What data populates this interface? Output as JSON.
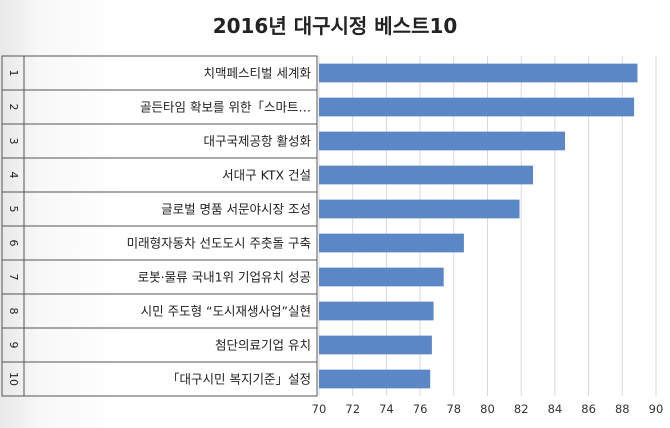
{
  "chart_data": {
    "type": "bar",
    "orientation": "horizontal",
    "title": "2016년 대구시정 베스트10",
    "ranks": [
      "1",
      "2",
      "3",
      "4",
      "5",
      "6",
      "7",
      "8",
      "9",
      "10"
    ],
    "categories": [
      "치맥페스티벌 세계화",
      "골든타임 확보를 위한「스마트…",
      "대구국제공항 활성화",
      "서대구 KTX 건설",
      "글로벌 명품 서문야시장 조성",
      "미래형자동차 선도도시 주춧돌 구축",
      "로봇·물류 국내1위 기업유치 성공",
      "시민 주도형 “도시재생사업”실현",
      "첨단의료기업 유치",
      "「대구시민 복지기준」설정"
    ],
    "values": [
      88.9,
      88.7,
      84.6,
      82.7,
      81.9,
      78.6,
      77.4,
      76.8,
      76.7,
      76.6
    ],
    "xlim": [
      70,
      90
    ],
    "x_ticks": [
      "70",
      "72",
      "74",
      "76",
      "78",
      "80",
      "82",
      "84",
      "86",
      "88",
      "90"
    ],
    "grid": true,
    "bar_color": "#5b87c6",
    "grid_color": "#d9d9d9"
  }
}
